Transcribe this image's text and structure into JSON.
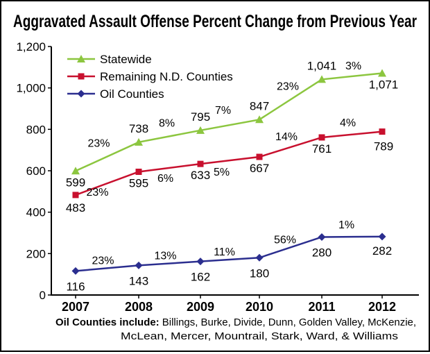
{
  "chart_data": {
    "type": "line",
    "title": "Aggravated Assault Offense Percent Change from Previous Year",
    "xlabel": "",
    "ylabel": "",
    "x": [
      "2007",
      "2008",
      "2009",
      "2010",
      "2011",
      "2012"
    ],
    "ylim": [
      0,
      1200
    ],
    "yticks": [
      "0",
      "200",
      "400",
      "600",
      "800",
      "1,000",
      "1,200"
    ],
    "grid": false,
    "legend_position": "top-left",
    "series": [
      {
        "name": "Statewide",
        "color": "#8cc63f",
        "marker": "triangle",
        "values": [
          599,
          738,
          795,
          847,
          1041,
          1071
        ],
        "value_labels": [
          "599",
          "738",
          "795",
          "847",
          "1,041",
          "1,071"
        ],
        "change_labels": [
          "23%",
          "8%",
          "7%",
          "23%",
          "3%"
        ]
      },
      {
        "name": "Remaining N.D. Counties",
        "color": "#c8102e",
        "marker": "square",
        "values": [
          483,
          595,
          633,
          667,
          761,
          789
        ],
        "value_labels": [
          "483",
          "595",
          "633",
          "667",
          "761",
          "789"
        ],
        "change_labels": [
          "23%",
          "6%",
          "5%",
          "14%",
          "4%"
        ]
      },
      {
        "name": "Oil Counties",
        "color": "#2b2e8f",
        "marker": "diamond",
        "values": [
          116,
          143,
          162,
          180,
          280,
          282
        ],
        "value_labels": [
          "116",
          "143",
          "162",
          "180",
          "280",
          "282"
        ],
        "change_labels": [
          "23%",
          "13%",
          "11%",
          "56%",
          "1%"
        ]
      }
    ],
    "footnote": {
      "bold": "Oil Counties include:",
      "line1": " Billings, Burke, Divide, Dunn, Golden Valley, McKenzie,",
      "line2": "McLean, Mercer, Mountrail, Stark, Ward, & Williams"
    }
  }
}
